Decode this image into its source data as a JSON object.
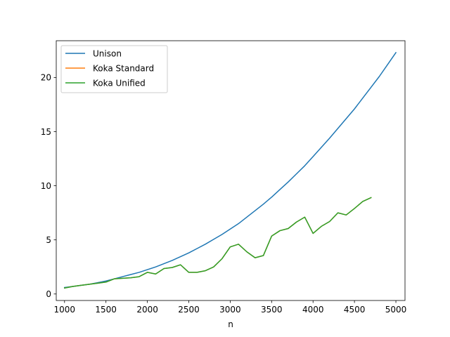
{
  "chart_data": {
    "type": "line",
    "xlabel": "n",
    "ylabel": "",
    "title": "",
    "xlim": [
      900,
      5110
    ],
    "ylim": [
      -0.6,
      23.4
    ],
    "xticks": [
      1000,
      1500,
      2000,
      2500,
      3000,
      3500,
      4000,
      4500,
      5000
    ],
    "yticks": [
      0,
      5,
      10,
      15,
      20
    ],
    "grid": false,
    "legend_position": "top-left",
    "series": [
      {
        "name": "Unison",
        "color": "#1f77b4",
        "x": [
          1000,
          1100,
          1200,
          1300,
          1400,
          1500,
          1600,
          1700,
          1800,
          1900,
          2000,
          2100,
          2200,
          2300,
          2400,
          2500,
          2600,
          2700,
          2800,
          2900,
          3000,
          3100,
          3200,
          3300,
          3400,
          3500,
          3600,
          3700,
          3800,
          3900,
          4000,
          4100,
          4200,
          4300,
          4400,
          4500,
          4600,
          4700,
          4800,
          4900,
          5000
        ],
        "y": [
          0.6,
          0.7,
          0.8,
          0.9,
          1.05,
          1.2,
          1.4,
          1.6,
          1.8,
          2.0,
          2.25,
          2.5,
          2.8,
          3.1,
          3.45,
          3.8,
          4.2,
          4.6,
          5.05,
          5.5,
          6.0,
          6.5,
          7.1,
          7.7,
          8.3,
          8.95,
          9.65,
          10.35,
          11.1,
          11.85,
          12.7,
          13.55,
          14.4,
          15.3,
          16.2,
          17.1,
          18.1,
          19.1,
          20.1,
          21.2,
          22.3
        ]
      },
      {
        "name": "Koka Standard",
        "color": "#ff7f0e",
        "x": [
          1000,
          1100,
          1200,
          1300,
          1400,
          1500,
          1600,
          1700,
          1800,
          1900,
          2000,
          2100,
          2200,
          2300,
          2400,
          2500,
          2600,
          2700,
          2800,
          2900,
          3000,
          3100,
          3200,
          3300,
          3400,
          3500,
          3600,
          3700,
          3800,
          3900,
          4000,
          4100,
          4200,
          4300,
          4400,
          4500,
          4600,
          4700
        ],
        "y": [
          0.55,
          0.7,
          0.8,
          0.9,
          1.0,
          1.1,
          1.4,
          1.45,
          1.5,
          1.6,
          2.0,
          1.85,
          2.35,
          2.45,
          2.7,
          2.0,
          2.0,
          2.15,
          2.5,
          3.25,
          4.35,
          4.6,
          3.9,
          3.35,
          3.55,
          5.35,
          5.85,
          6.05,
          6.65,
          7.1,
          5.6,
          6.25,
          6.7,
          7.5,
          7.3,
          7.9,
          8.55,
          8.9
        ]
      },
      {
        "name": "Koka Unified",
        "color": "#2ca02c",
        "x": [
          1000,
          1100,
          1200,
          1300,
          1400,
          1500,
          1600,
          1700,
          1800,
          1900,
          2000,
          2100,
          2200,
          2300,
          2400,
          2500,
          2600,
          2700,
          2800,
          2900,
          3000,
          3100,
          3200,
          3300,
          3400,
          3500,
          3600,
          3700,
          3800,
          3900,
          4000,
          4100,
          4200,
          4300,
          4400,
          4500,
          4600,
          4700
        ],
        "y": [
          0.55,
          0.7,
          0.8,
          0.9,
          1.0,
          1.1,
          1.4,
          1.45,
          1.5,
          1.6,
          2.0,
          1.85,
          2.35,
          2.45,
          2.7,
          2.0,
          2.0,
          2.15,
          2.5,
          3.25,
          4.35,
          4.6,
          3.9,
          3.35,
          3.55,
          5.35,
          5.85,
          6.05,
          6.65,
          7.1,
          5.6,
          6.25,
          6.7,
          7.5,
          7.3,
          7.9,
          8.55,
          8.9
        ]
      }
    ]
  }
}
